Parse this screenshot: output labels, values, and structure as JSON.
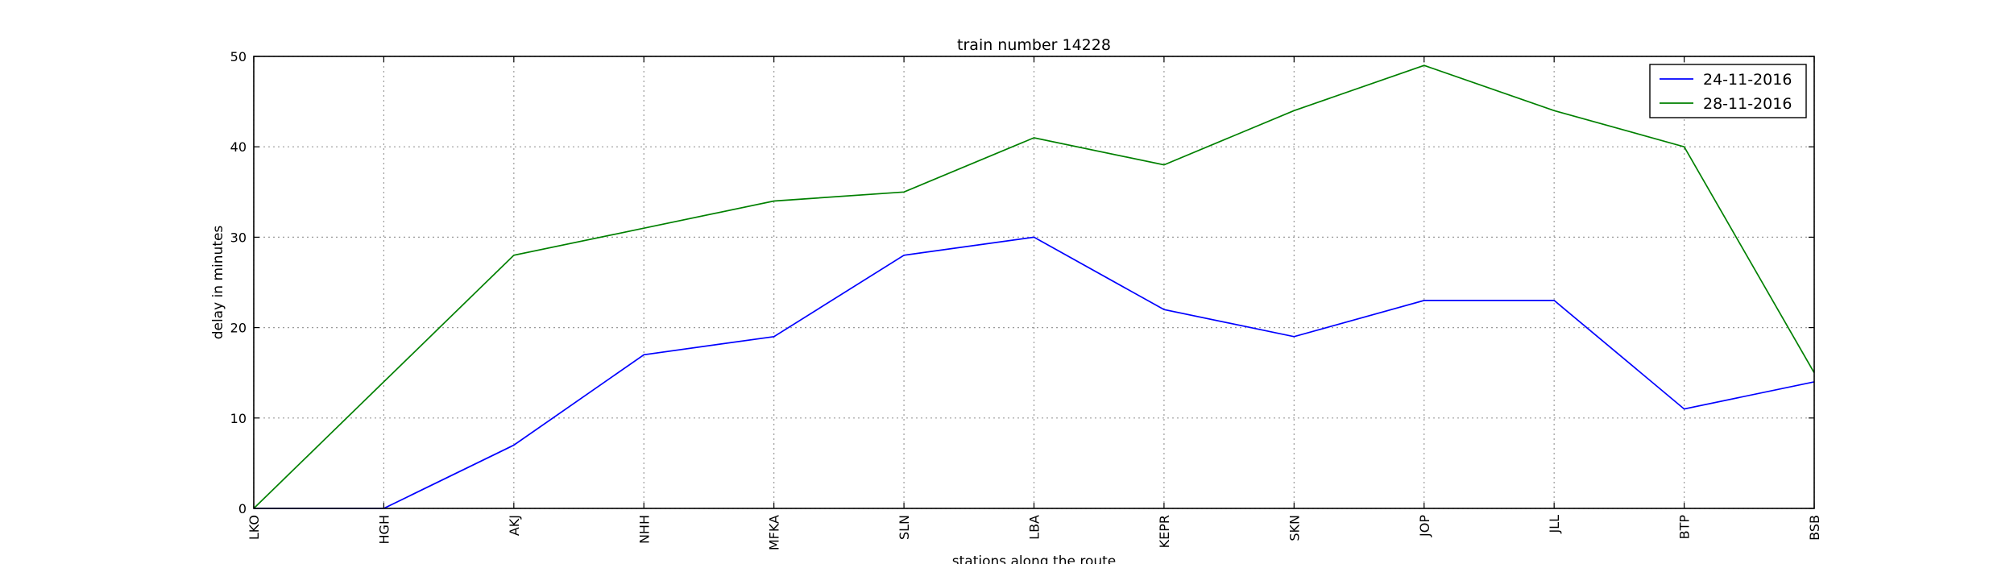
{
  "chart_data": {
    "type": "line",
    "title": "train number 14228",
    "xlabel": "stations along the route",
    "ylabel": "delay in minutes",
    "categories": [
      "LKO",
      "HGH",
      "AKJ",
      "NHH",
      "MFKA",
      "SLN",
      "LBA",
      "KEPR",
      "SKN",
      "JOP",
      "JLL",
      "BTP",
      "BSB"
    ],
    "ylim": [
      0,
      50
    ],
    "yticks": [
      "0",
      "10",
      "20",
      "30",
      "40",
      "50"
    ],
    "grid": true,
    "legend_position": "top-right",
    "series": [
      {
        "name": "24-11-2016",
        "color": "#0000ff",
        "values": [
          0,
          0,
          7,
          17,
          19,
          28,
          30,
          22,
          19,
          23,
          23,
          11,
          14
        ]
      },
      {
        "name": "28-11-2016",
        "color": "#008000",
        "values": [
          0,
          14,
          28,
          31,
          34,
          35,
          41,
          38,
          44,
          49,
          44,
          40,
          15
        ]
      }
    ]
  }
}
